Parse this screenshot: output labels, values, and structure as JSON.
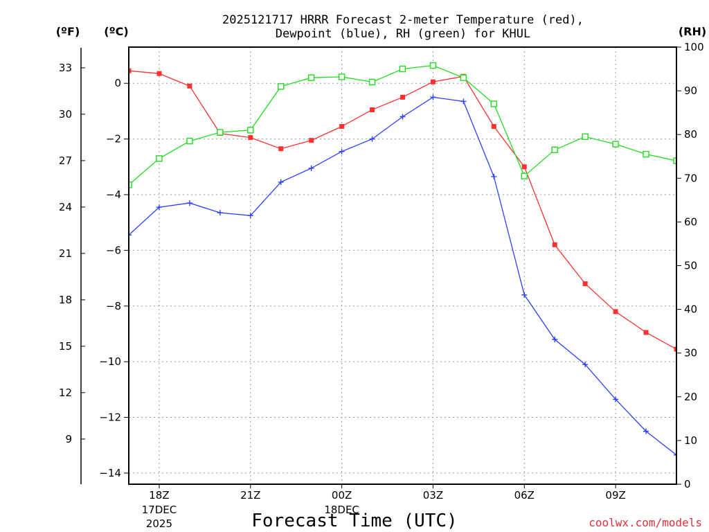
{
  "chart_data": {
    "type": "line",
    "title": {
      "line1": "2025121717 HRRR Forecast 2-meter Temperature (red),",
      "line2": "Dewpoint (blue), RH (green) for KHUL"
    },
    "xlabel": "Forecast Time (UTC)",
    "credit": "coolwx.com/models",
    "units": {
      "fahrenheit": "(ºF)",
      "celsius": "(ºC)",
      "rh": "(RH)"
    },
    "x": [
      0,
      1,
      2,
      3,
      4,
      5,
      6,
      7,
      8,
      9,
      10,
      11,
      12,
      13,
      14,
      15,
      16,
      17,
      18
    ],
    "x_ticks": [
      {
        "x": 1,
        "label": "18Z",
        "date": "17DEC",
        "year": "2025"
      },
      {
        "x": 4,
        "label": "21Z"
      },
      {
        "x": 7,
        "label": "00Z",
        "date": "18DEC"
      },
      {
        "x": 10,
        "label": "03Z"
      },
      {
        "x": 13,
        "label": "06Z"
      },
      {
        "x": 16,
        "label": "09Z"
      }
    ],
    "y_celsius": {
      "range": [
        -14.4,
        1.3
      ],
      "ticks": [
        "0",
        "−2",
        "−4",
        "−6",
        "−8",
        "−10",
        "−12",
        "−14"
      ],
      "tick_values": [
        0,
        -2,
        -4,
        -6,
        -8,
        -10,
        -12,
        -14
      ]
    },
    "y_fahrenheit": {
      "ticks": [
        "33",
        "30",
        "27",
        "24",
        "21",
        "18",
        "15",
        "12",
        "9"
      ],
      "tick_values": [
        33,
        30,
        27,
        24,
        21,
        18,
        15,
        12,
        9
      ]
    },
    "y_rh": {
      "range": [
        0,
        100
      ],
      "ticks": [
        "100",
        "90",
        "80",
        "70",
        "60",
        "50",
        "40",
        "30",
        "20",
        "10",
        "0"
      ],
      "tick_values": [
        100,
        90,
        80,
        70,
        60,
        50,
        40,
        30,
        20,
        10,
        0
      ]
    },
    "series": [
      {
        "name": "Temperature",
        "unit": "C",
        "color": "#ff3030",
        "marker": "filled-square",
        "values": [
          0.45,
          0.35,
          -0.1,
          -1.8,
          -1.95,
          -2.35,
          -2.05,
          -1.55,
          -0.95,
          -0.5,
          0.05,
          0.25,
          -1.55,
          -3.0,
          -5.8,
          -7.2,
          -8.2,
          -8.95,
          -9.55
        ]
      },
      {
        "name": "Dewpoint",
        "unit": "C",
        "color": "#2a40ff",
        "marker": "plus",
        "values": [
          -5.45,
          -4.45,
          -4.3,
          -4.65,
          -4.75,
          -3.55,
          -3.05,
          -2.45,
          -2.0,
          -1.2,
          -0.5,
          -0.65,
          -3.35,
          -7.6,
          -9.2,
          -10.1,
          -11.35,
          -12.5,
          -13.35
        ]
      },
      {
        "name": "RH",
        "unit": "%",
        "color": "#20dd20",
        "marker": "open-square",
        "values": [
          68.5,
          74.5,
          78.5,
          80.5,
          81.0,
          91.0,
          93.0,
          93.2,
          92.0,
          95.0,
          95.8,
          93.0,
          87.0,
          70.5,
          76.5,
          79.5,
          77.8,
          75.5,
          74.0
        ]
      }
    ]
  }
}
